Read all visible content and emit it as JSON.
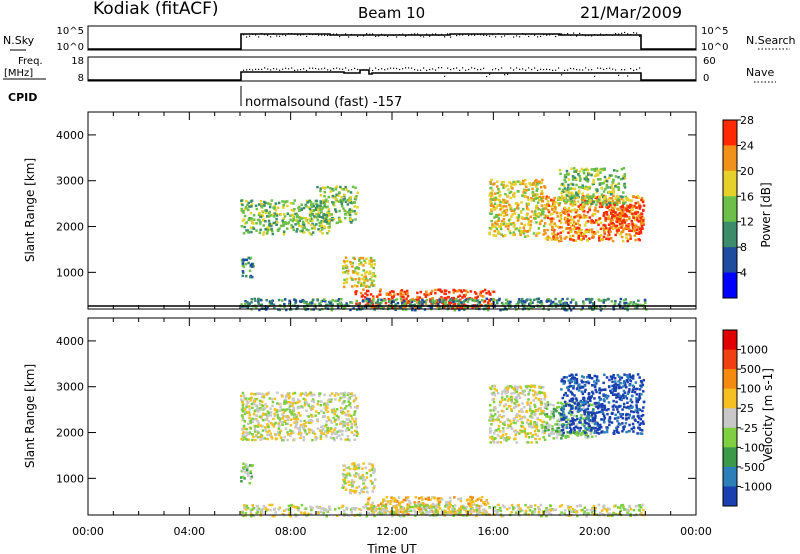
{
  "header": {
    "station": "Kodiak (fitACF)",
    "beam": "Beam 10",
    "date": "21/Mar/2009"
  },
  "cpid": {
    "label": "CPID",
    "mode": "normalsound (fast) -157"
  },
  "panel_labels": {
    "nsky": "N.Sky",
    "nsky_tick_top": "10^5",
    "nsky_tick_bottom": "10^0",
    "nsearch_tick_top": "10^5",
    "nsearch_tick_bottom": "10^0",
    "nsearch": "N.Search",
    "freq_line1": "Freq.",
    "freq_line2": "[MHz]",
    "freq_tick_top": "18",
    "freq_tick_bottom": "8",
    "nave_tick_top": "60",
    "nave_tick_bottom": "0",
    "nave": "Nave"
  },
  "chart_data": [
    {
      "type": "heatmap",
      "name_id": "power",
      "ylabel": "Slant Range [km]",
      "xlabel": "",
      "xlim": [
        0,
        24
      ],
      "ylim": [
        200,
        4500
      ],
      "ytick_values": [
        1000,
        2000,
        3000,
        4000
      ],
      "ytick_labels": [
        "1000",
        "2000",
        "3000",
        "4000"
      ],
      "colorbar": {
        "label": "Power [dB]",
        "tick_labels": [
          "4",
          "8",
          "12",
          "16",
          "20",
          "24",
          "28"
        ],
        "colors": [
          "#0000ff",
          "#1e4ca0",
          "#3a8c6a",
          "#6cc04a",
          "#e6d12a",
          "#f2911a",
          "#ff2a00"
        ]
      },
      "regions": [
        {
          "t0": 6.0,
          "t1": 9.5,
          "r0": 1850,
          "r1": 2600,
          "level": 3
        },
        {
          "t0": 9.0,
          "t1": 10.6,
          "r0": 2100,
          "r1": 2900,
          "level": 3
        },
        {
          "t0": 6.0,
          "t1": 6.5,
          "r0": 900,
          "r1": 1350,
          "level": 2
        },
        {
          "t0": 10.0,
          "t1": 11.3,
          "r0": 700,
          "r1": 1350,
          "level": 4
        },
        {
          "t0": 10.5,
          "t1": 16.0,
          "r0": 230,
          "r1": 650,
          "level": 6
        },
        {
          "t0": 6.0,
          "t1": 22.0,
          "r0": 200,
          "r1": 450,
          "level": 2
        },
        {
          "t0": 15.8,
          "t1": 18.0,
          "r0": 1800,
          "r1": 3050,
          "level": 4
        },
        {
          "t0": 18.0,
          "t1": 21.9,
          "r0": 1700,
          "r1": 2700,
          "level": 5
        },
        {
          "t0": 18.5,
          "t1": 21.2,
          "r0": 2500,
          "r1": 3300,
          "level": 3
        },
        {
          "t0": 20.3,
          "t1": 21.9,
          "r0": 1900,
          "r1": 2500,
          "level": 6
        }
      ]
    },
    {
      "type": "heatmap",
      "name_id": "velocity",
      "ylabel": "Slant Range [km]",
      "xlabel": "Time UT",
      "xlim": [
        0,
        24
      ],
      "ylim": [
        200,
        4500
      ],
      "ytick_values": [
        1000,
        2000,
        3000,
        4000
      ],
      "ytick_labels": [
        "1000",
        "2000",
        "3000",
        "4000"
      ],
      "xtick_values": [
        0,
        4,
        8,
        12,
        16,
        20,
        24
      ],
      "xtick_labels": [
        "00:00",
        "04:00",
        "08:00",
        "12:00",
        "16:00",
        "20:00",
        "00:00"
      ],
      "colorbar": {
        "label": "Velocity [m s-1]",
        "tick_labels": [
          "1000",
          "500",
          "100",
          "25",
          "-25",
          "-100",
          "-500",
          "-1000"
        ],
        "colors": [
          "#1a3fb0",
          "#2c7fb8",
          "#3a9a4a",
          "#7fd040",
          "#c8c8c8",
          "#f5c020",
          "#f58a10",
          "#f04010",
          "#e00000"
        ]
      },
      "regions": [
        {
          "t0": 6.0,
          "t1": 10.6,
          "r0": 1850,
          "r1": 2900,
          "level": 4
        },
        {
          "t0": 6.0,
          "t1": 6.5,
          "r0": 900,
          "r1": 1350,
          "level": 3
        },
        {
          "t0": 10.0,
          "t1": 11.3,
          "r0": 700,
          "r1": 1350,
          "level": 4
        },
        {
          "t0": 11.0,
          "t1": 15.8,
          "r0": 230,
          "r1": 620,
          "level": 5
        },
        {
          "t0": 6.0,
          "t1": 22.0,
          "r0": 200,
          "r1": 450,
          "level": 4
        },
        {
          "t0": 15.8,
          "t1": 18.0,
          "r0": 1800,
          "r1": 3050,
          "level": 4
        },
        {
          "t0": 18.0,
          "t1": 20.0,
          "r0": 1900,
          "r1": 2700,
          "level": 3
        },
        {
          "t0": 18.6,
          "t1": 21.9,
          "r0": 2000,
          "r1": 3300,
          "level": 0
        }
      ]
    }
  ]
}
